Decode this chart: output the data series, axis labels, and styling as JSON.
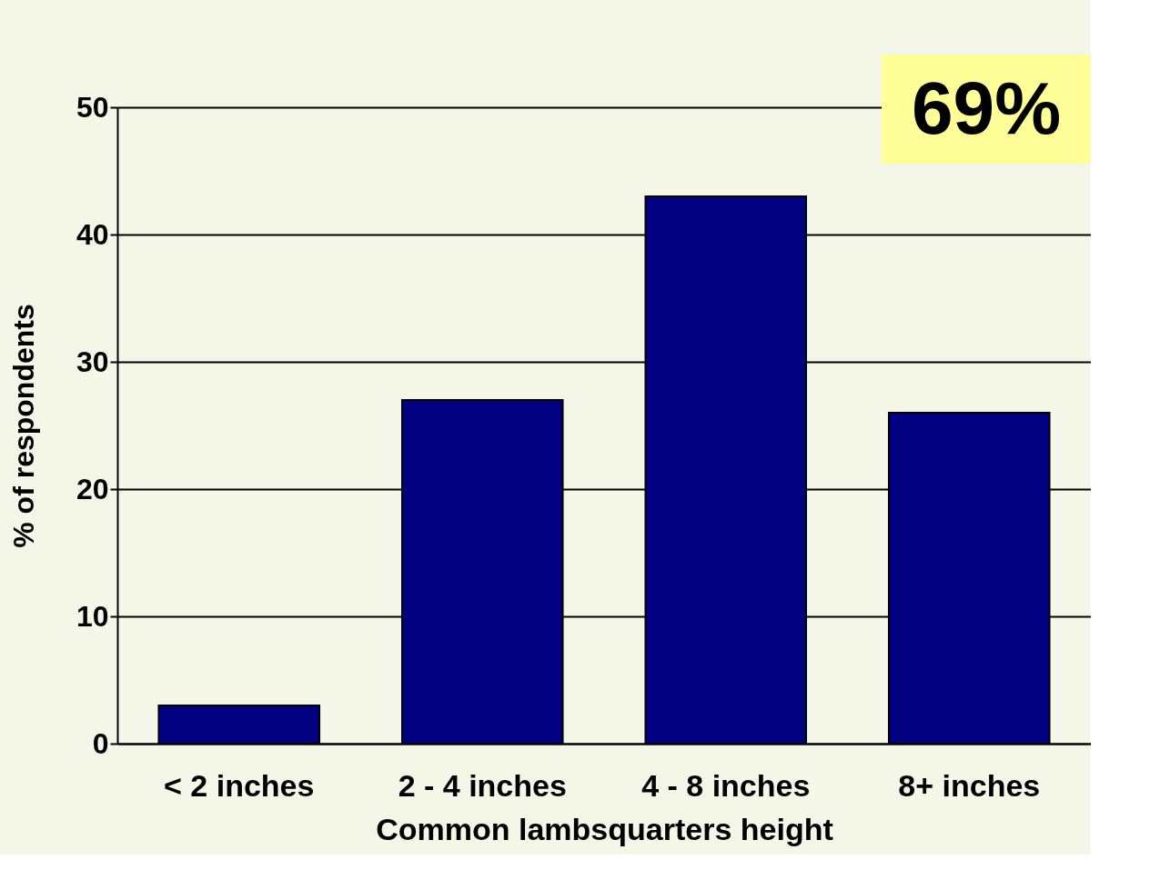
{
  "chart_data": {
    "type": "bar",
    "xlabel": "Common lambsquarters height",
    "ylabel": "% of respondents",
    "categories": [
      "< 2 inches",
      "2 - 4 inches",
      "4 - 8 inches",
      "8+ inches"
    ],
    "values": [
      3,
      27,
      43,
      26
    ],
    "color": "#000080",
    "ylim": [
      0,
      50
    ],
    "yticks": [
      0,
      10,
      20,
      30,
      40,
      50
    ],
    "grid": "y",
    "annotations": [
      "69%"
    ]
  }
}
